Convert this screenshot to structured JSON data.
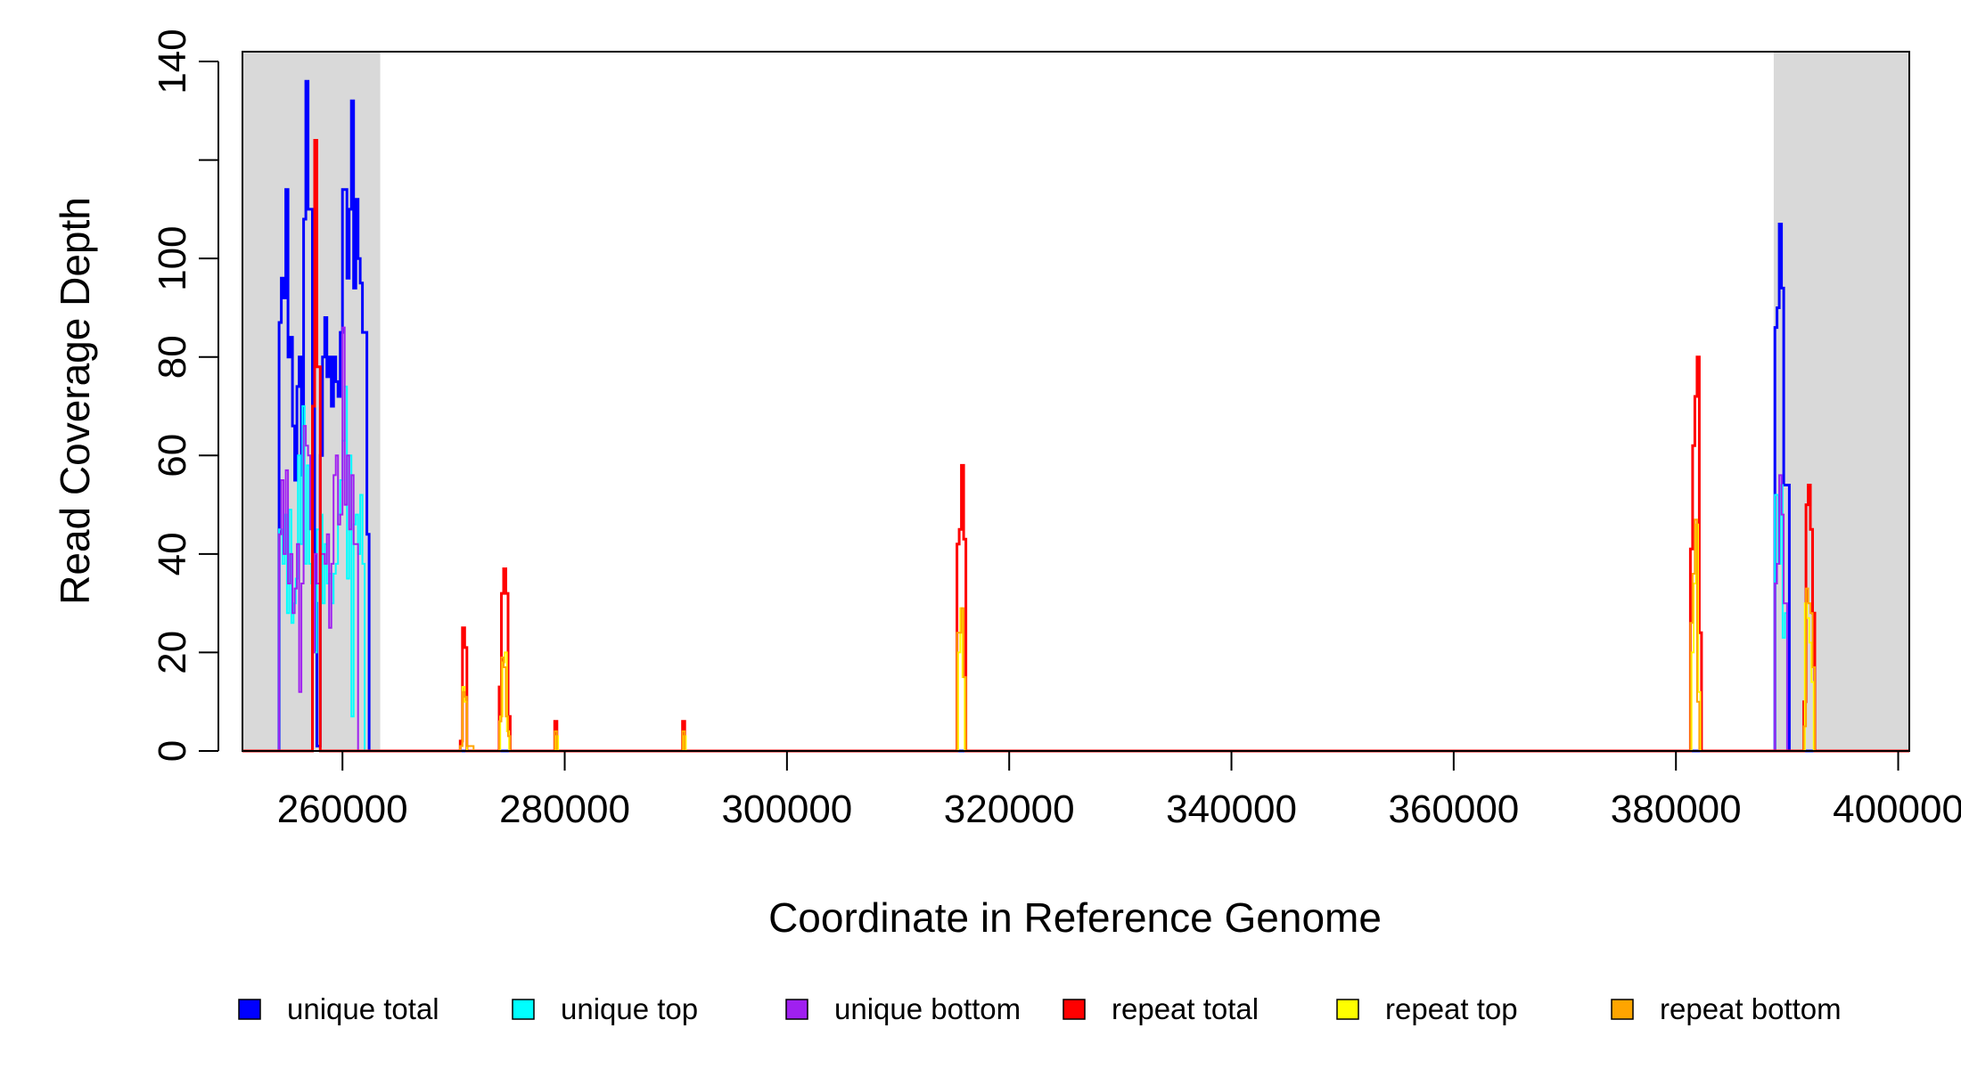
{
  "chart_data": {
    "type": "line",
    "subtype": "step",
    "xlabel": "Coordinate in Reference Genome",
    "ylabel": "Read Coverage Depth",
    "xlim": [
      251000,
      401000
    ],
    "ylim": [
      0,
      142
    ],
    "x_ticks": [
      260000,
      280000,
      300000,
      320000,
      340000,
      360000,
      380000,
      400000
    ],
    "x_tick_labels": [
      "260000",
      "280000",
      "300000",
      "320000",
      "340000",
      "360000",
      "380000",
      "400000"
    ],
    "y_ticks": [
      0,
      20,
      40,
      60,
      80,
      100,
      120,
      140
    ],
    "y_tick_labels": [
      "0",
      "20",
      "40",
      "60",
      "80",
      "100",
      "",
      "140"
    ],
    "grid": false,
    "legend_position": "bottom",
    "shaded_regions": [
      {
        "from": 251000,
        "to": 263400,
        "color": "#d9d9d9"
      },
      {
        "from": 388800,
        "to": 401000,
        "color": "#d9d9d9"
      }
    ],
    "series": [
      {
        "name": "unique total",
        "color": "#0000ff",
        "points": [
          [
            251000,
            0
          ],
          [
            254300,
            0
          ],
          [
            254300,
            87
          ],
          [
            254500,
            96
          ],
          [
            254700,
            92
          ],
          [
            254900,
            114
          ],
          [
            255100,
            80
          ],
          [
            255300,
            84
          ],
          [
            255500,
            66
          ],
          [
            255700,
            55
          ],
          [
            255900,
            74
          ],
          [
            256100,
            80
          ],
          [
            256300,
            56
          ],
          [
            256500,
            108
          ],
          [
            256700,
            136
          ],
          [
            256900,
            110
          ],
          [
            257100,
            110
          ],
          [
            257300,
            70
          ],
          [
            257500,
            30
          ],
          [
            257700,
            1
          ],
          [
            258000,
            60
          ],
          [
            258200,
            80
          ],
          [
            258400,
            88
          ],
          [
            258600,
            76
          ],
          [
            258800,
            80
          ],
          [
            259000,
            70
          ],
          [
            259200,
            80
          ],
          [
            259400,
            75
          ],
          [
            259600,
            72
          ],
          [
            259800,
            85
          ],
          [
            260000,
            114
          ],
          [
            260200,
            114
          ],
          [
            260400,
            96
          ],
          [
            260600,
            110
          ],
          [
            260800,
            132
          ],
          [
            261000,
            94
          ],
          [
            261200,
            112
          ],
          [
            261400,
            100
          ],
          [
            261600,
            95
          ],
          [
            261800,
            85
          ],
          [
            262000,
            85
          ],
          [
            262200,
            44
          ],
          [
            262400,
            0
          ],
          [
            388900,
            0
          ],
          [
            388900,
            86
          ],
          [
            389100,
            90
          ],
          [
            389300,
            107
          ],
          [
            389500,
            94
          ],
          [
            389700,
            54
          ],
          [
            390000,
            54
          ],
          [
            390200,
            0
          ],
          [
            401000,
            0
          ]
        ]
      },
      {
        "name": "unique top",
        "color": "#00ffff",
        "points": [
          [
            251000,
            0
          ],
          [
            254300,
            0
          ],
          [
            254300,
            45
          ],
          [
            254600,
            38
          ],
          [
            254800,
            48
          ],
          [
            255000,
            28
          ],
          [
            255200,
            49
          ],
          [
            255400,
            26
          ],
          [
            255600,
            30
          ],
          [
            255800,
            35
          ],
          [
            256000,
            60
          ],
          [
            256200,
            42
          ],
          [
            256400,
            70
          ],
          [
            256600,
            38
          ],
          [
            256800,
            58
          ],
          [
            257000,
            38
          ],
          [
            257200,
            34
          ],
          [
            257400,
            20
          ],
          [
            257700,
            45
          ],
          [
            258000,
            48
          ],
          [
            258200,
            30
          ],
          [
            258400,
            42
          ],
          [
            258600,
            34
          ],
          [
            258800,
            36
          ],
          [
            259000,
            30
          ],
          [
            259200,
            36
          ],
          [
            259400,
            38
          ],
          [
            259600,
            48
          ],
          [
            259800,
            55
          ],
          [
            260000,
            63
          ],
          [
            260200,
            74
          ],
          [
            260400,
            35
          ],
          [
            260600,
            60
          ],
          [
            260800,
            7
          ],
          [
            261000,
            46
          ],
          [
            261200,
            48
          ],
          [
            261400,
            40
          ],
          [
            261600,
            52
          ],
          [
            261800,
            38
          ],
          [
            262000,
            0
          ],
          [
            388900,
            0
          ],
          [
            388900,
            52
          ],
          [
            389200,
            38
          ],
          [
            389400,
            54
          ],
          [
            389600,
            23
          ],
          [
            389800,
            28
          ],
          [
            390000,
            0
          ],
          [
            401000,
            0
          ]
        ]
      },
      {
        "name": "unique bottom",
        "color": "#a020f0",
        "points": [
          [
            251000,
            0
          ],
          [
            254300,
            0
          ],
          [
            254300,
            44
          ],
          [
            254500,
            55
          ],
          [
            254700,
            40
          ],
          [
            254900,
            57
          ],
          [
            255100,
            34
          ],
          [
            255300,
            40
          ],
          [
            255500,
            28
          ],
          [
            255700,
            33
          ],
          [
            255900,
            42
          ],
          [
            256100,
            12
          ],
          [
            256300,
            34
          ],
          [
            256500,
            66
          ],
          [
            256700,
            62
          ],
          [
            256900,
            60
          ],
          [
            257100,
            45
          ],
          [
            257300,
            20
          ],
          [
            257500,
            40
          ],
          [
            257700,
            34
          ],
          [
            258000,
            40
          ],
          [
            258200,
            40
          ],
          [
            258400,
            38
          ],
          [
            258600,
            44
          ],
          [
            258800,
            25
          ],
          [
            259000,
            38
          ],
          [
            259200,
            56
          ],
          [
            259400,
            60
          ],
          [
            259600,
            46
          ],
          [
            259800,
            48
          ],
          [
            260000,
            86
          ],
          [
            260200,
            50
          ],
          [
            260400,
            60
          ],
          [
            260600,
            45
          ],
          [
            260800,
            56
          ],
          [
            261000,
            42
          ],
          [
            261200,
            42
          ],
          [
            261400,
            0
          ],
          [
            388900,
            0
          ],
          [
            388900,
            34
          ],
          [
            389100,
            38
          ],
          [
            389300,
            56
          ],
          [
            389500,
            48
          ],
          [
            389700,
            30
          ],
          [
            390000,
            0
          ],
          [
            401000,
            0
          ]
        ]
      },
      {
        "name": "repeat total",
        "color": "#ff0000",
        "points": [
          [
            251000,
            0
          ],
          [
            257300,
            0
          ],
          [
            257300,
            70
          ],
          [
            257500,
            124
          ],
          [
            257700,
            78
          ],
          [
            258000,
            0
          ],
          [
            270600,
            0
          ],
          [
            270600,
            2
          ],
          [
            270800,
            25
          ],
          [
            271000,
            21
          ],
          [
            271200,
            0
          ],
          [
            274100,
            0
          ],
          [
            274100,
            13
          ],
          [
            274300,
            32
          ],
          [
            274500,
            37
          ],
          [
            274700,
            32
          ],
          [
            274900,
            7
          ],
          [
            275100,
            0
          ],
          [
            279100,
            0
          ],
          [
            279100,
            6
          ],
          [
            279300,
            0
          ],
          [
            290600,
            0
          ],
          [
            290600,
            6
          ],
          [
            290800,
            0
          ],
          [
            315300,
            0
          ],
          [
            315300,
            42
          ],
          [
            315500,
            45
          ],
          [
            315700,
            58
          ],
          [
            315900,
            43
          ],
          [
            316100,
            0
          ],
          [
            381300,
            0
          ],
          [
            381300,
            41
          ],
          [
            381500,
            62
          ],
          [
            381700,
            72
          ],
          [
            381900,
            80
          ],
          [
            382100,
            24
          ],
          [
            382300,
            0
          ],
          [
            391500,
            0
          ],
          [
            391500,
            10
          ],
          [
            391700,
            50
          ],
          [
            391900,
            54
          ],
          [
            392100,
            45
          ],
          [
            392300,
            28
          ],
          [
            392500,
            0
          ],
          [
            401000,
            0
          ]
        ]
      },
      {
        "name": "repeat top",
        "color": "#ffff00",
        "points": [
          [
            251000,
            0
          ],
          [
            270600,
            0
          ],
          [
            270600,
            1
          ],
          [
            270800,
            13
          ],
          [
            271000,
            10
          ],
          [
            271200,
            0
          ],
          [
            274200,
            0
          ],
          [
            274200,
            7
          ],
          [
            274400,
            18
          ],
          [
            274600,
            20
          ],
          [
            274800,
            4
          ],
          [
            275000,
            0
          ],
          [
            279200,
            0
          ],
          [
            279200,
            3
          ],
          [
            279400,
            0
          ],
          [
            290700,
            0
          ],
          [
            290700,
            3
          ],
          [
            290900,
            0
          ],
          [
            315400,
            0
          ],
          [
            315400,
            20
          ],
          [
            315600,
            29
          ],
          [
            315800,
            15
          ],
          [
            316000,
            0
          ],
          [
            381400,
            0
          ],
          [
            381400,
            20
          ],
          [
            381600,
            34
          ],
          [
            381800,
            46
          ],
          [
            382000,
            12
          ],
          [
            382200,
            0
          ],
          [
            391600,
            0
          ],
          [
            391600,
            30
          ],
          [
            391800,
            27
          ],
          [
            392000,
            22
          ],
          [
            392200,
            14
          ],
          [
            392400,
            0
          ],
          [
            401000,
            0
          ]
        ]
      },
      {
        "name": "repeat bottom",
        "color": "#ffa500",
        "points": [
          [
            251000,
            0
          ],
          [
            270600,
            0
          ],
          [
            270600,
            1
          ],
          [
            270800,
            12
          ],
          [
            271000,
            11
          ],
          [
            271200,
            1
          ],
          [
            271800,
            0
          ],
          [
            274100,
            0
          ],
          [
            274100,
            6
          ],
          [
            274300,
            19
          ],
          [
            274500,
            17
          ],
          [
            274700,
            7
          ],
          [
            274900,
            3
          ],
          [
            275100,
            0
          ],
          [
            279100,
            0
          ],
          [
            279100,
            4
          ],
          [
            279300,
            0
          ],
          [
            290600,
            0
          ],
          [
            290600,
            4
          ],
          [
            290800,
            0
          ],
          [
            315300,
            0
          ],
          [
            315300,
            24
          ],
          [
            315500,
            24
          ],
          [
            315700,
            29
          ],
          [
            315900,
            15
          ],
          [
            316100,
            0
          ],
          [
            381300,
            0
          ],
          [
            381300,
            26
          ],
          [
            381500,
            36
          ],
          [
            381700,
            47
          ],
          [
            381900,
            10
          ],
          [
            382100,
            0
          ],
          [
            391500,
            0
          ],
          [
            391500,
            5
          ],
          [
            391700,
            33
          ],
          [
            391900,
            30
          ],
          [
            392100,
            28
          ],
          [
            392300,
            17
          ],
          [
            392500,
            0
          ],
          [
            401000,
            0
          ]
        ]
      }
    ]
  }
}
